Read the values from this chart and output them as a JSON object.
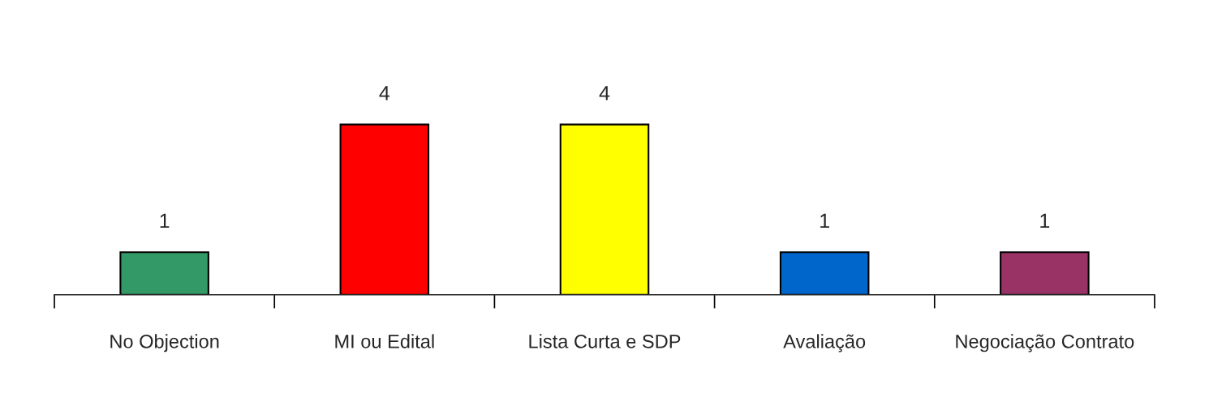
{
  "chart_data": {
    "type": "bar",
    "categories": [
      "No Objection",
      "MI ou Edital",
      "Lista Curta e SDP",
      "Avaliação",
      "Negociação Contrato"
    ],
    "values": [
      1,
      4,
      4,
      1,
      1
    ],
    "colors": [
      "#339966",
      "#ff0000",
      "#ffff00",
      "#0066cc",
      "#993366"
    ],
    "data_labels": true
  }
}
